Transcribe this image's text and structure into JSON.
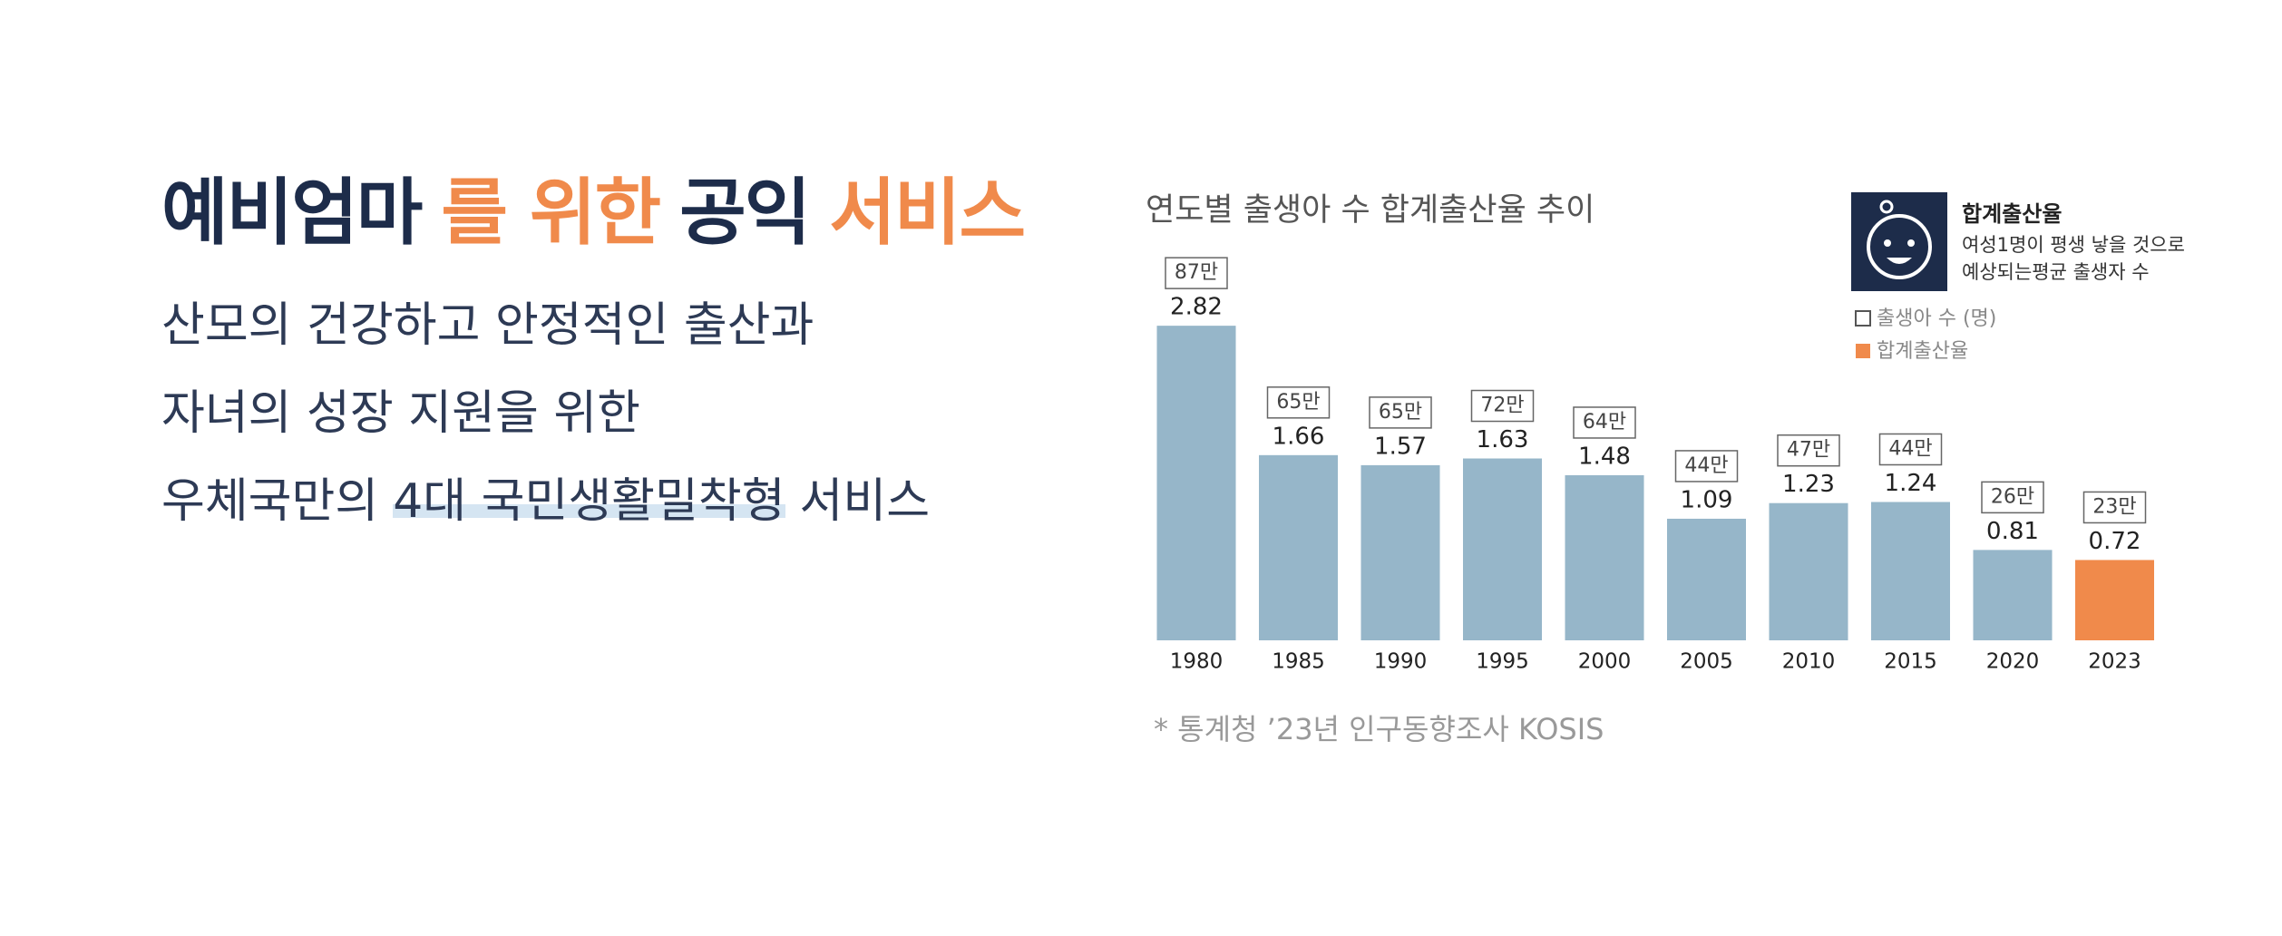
{
  "headline": {
    "parts": [
      "예비엄마",
      "를 위한",
      "공익",
      "서비스"
    ]
  },
  "subtitle": {
    "line1": "산모의 건강하고 안정적인 출산과",
    "line2": "자녀의 성장 지원을 위한",
    "line3": [
      "우체국만의",
      "4대 국민생활밀착형",
      "서비스"
    ]
  },
  "chart_data": {
    "type": "bar",
    "title": "연도별 출생아 수 합계출산율 추이",
    "categories": [
      "1980",
      "1985",
      "1990",
      "1995",
      "2000",
      "2005",
      "2010",
      "2015",
      "2020",
      "2023"
    ],
    "series": [
      {
        "name": "합계출산율",
        "color": "#f08a4b",
        "values": [
          2.82,
          1.66,
          1.57,
          1.63,
          1.48,
          1.09,
          1.23,
          1.24,
          0.81,
          0.72
        ],
        "bar_colors": [
          "#96b6c9",
          "#96b6c9",
          "#96b6c9",
          "#96b6c9",
          "#96b6c9",
          "#96b6c9",
          "#96b6c9",
          "#96b6c9",
          "#96b6c9",
          "#f08a4b"
        ]
      },
      {
        "name": "출생아 수 (명)",
        "color": "#ffffff",
        "values": [
          87,
          65,
          65,
          72,
          64,
          44,
          47,
          44,
          26,
          23
        ],
        "value_labels": [
          "87만",
          "65만",
          "65만",
          "72만",
          "64만",
          "44만",
          "47만",
          "44만",
          "26만",
          "23만"
        ]
      }
    ],
    "note": {
      "title": "합계출산율",
      "lines": [
        "여성1명이 평생 낳을 것으로",
        "예상되는평균 출생자 수"
      ]
    },
    "source": "* 통계청 ’23년 인구동향조사 KOSIS"
  }
}
